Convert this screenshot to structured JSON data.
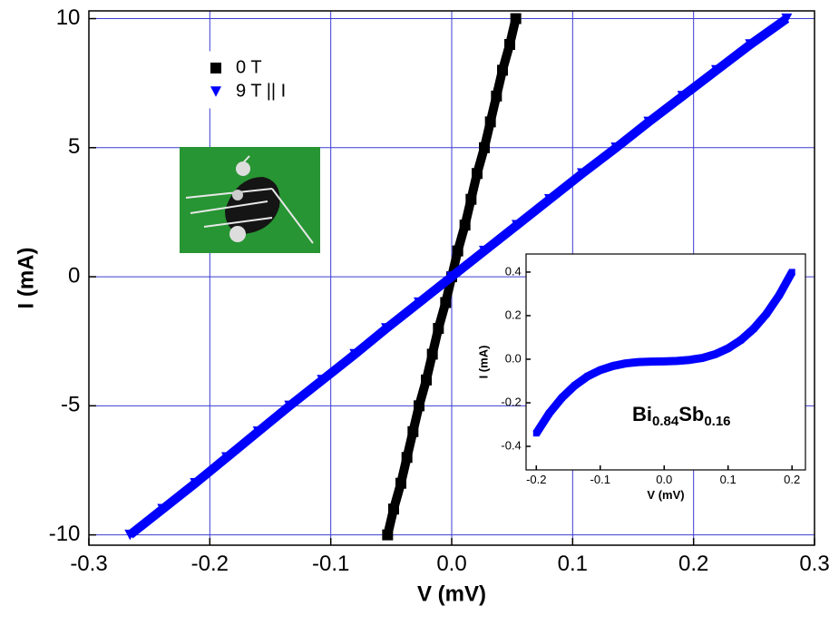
{
  "chart_data": [
    {
      "type": "scatter",
      "x_label": "V (mV)",
      "y_label": "I (mA)",
      "xlim": [
        -0.3,
        0.3
      ],
      "ylim": [
        -10.4,
        10.3
      ],
      "xticks": [
        -0.3,
        -0.2,
        -0.1,
        {
          "value": 0,
          "label": "0.0"
        },
        0.1,
        0.2,
        0.3
      ],
      "yticks": [
        -10,
        -5,
        0,
        5,
        10
      ],
      "grid": true,
      "grid_color": "#3c3cd2",
      "legend": "upper left",
      "series": [
        {
          "name": "0 T",
          "color": "#000000",
          "marker": "square",
          "x": [
            -0.053,
            -0.048,
            -0.042,
            -0.037,
            -0.032,
            -0.027,
            -0.021,
            -0.016,
            -0.011,
            -0.005,
            0,
            0.005,
            0.011,
            0.016,
            0.021,
            0.027,
            0.032,
            0.037,
            0.042,
            0.048,
            0.053
          ],
          "values": [
            -10,
            -9,
            -8,
            -7,
            -6,
            -5,
            -4,
            -3,
            -2,
            -1,
            0,
            1,
            2,
            3,
            4,
            5,
            6,
            7,
            8,
            9,
            10
          ]
        },
        {
          "name": "9 T || I",
          "color": "#0000ff",
          "marker": "triangle-down",
          "x": [
            -0.266,
            -0.239,
            -0.212,
            -0.186,
            -0.16,
            -0.134,
            -0.107,
            -0.08,
            -0.054,
            -0.027,
            0,
            0.027,
            0.054,
            0.081,
            0.108,
            0.136,
            0.163,
            0.191,
            0.219,
            0.247,
            0.277
          ],
          "values": [
            -10,
            -9,
            -8,
            -7,
            -6,
            -5,
            -4,
            -3,
            -2,
            -1,
            0,
            1,
            2,
            3,
            4,
            5,
            6,
            7,
            8,
            9,
            10
          ]
        }
      ]
    },
    {
      "type": "scatter",
      "x_label": "V (mV)",
      "y_label": "I (mA)",
      "xlim": [
        -0.216,
        0.221
      ],
      "ylim": [
        -0.508,
        0.483
      ],
      "xticks": [
        -0.2,
        -0.1,
        {
          "value": 0,
          "label": "0.0"
        },
        0.1,
        0.2
      ],
      "yticks": [
        -0.4,
        -0.2,
        {
          "value": 0,
          "label": "0.0"
        },
        0.2,
        0.4
      ],
      "grid": false,
      "annotation": [
        "Bi",
        "0.84",
        "Sb",
        "0.16"
      ],
      "series": [
        {
          "color": "#0000ff",
          "marker": "square",
          "x": [
            -0.2,
            -0.18,
            -0.16,
            -0.14,
            -0.12,
            -0.1,
            -0.08,
            -0.06,
            -0.04,
            -0.02,
            0,
            0.02,
            0.04,
            0.06,
            0.08,
            0.1,
            0.12,
            0.14,
            0.16,
            0.18,
            0.2
          ],
          "values": [
            -0.34,
            -0.249,
            -0.177,
            -0.121,
            -0.079,
            -0.05,
            -0.031,
            -0.019,
            -0.013,
            -0.011,
            -0.01,
            -0.008,
            -0.003,
            0.006,
            0.023,
            0.05,
            0.088,
            0.14,
            0.208,
            0.294,
            0.4
          ]
        }
      ]
    }
  ]
}
